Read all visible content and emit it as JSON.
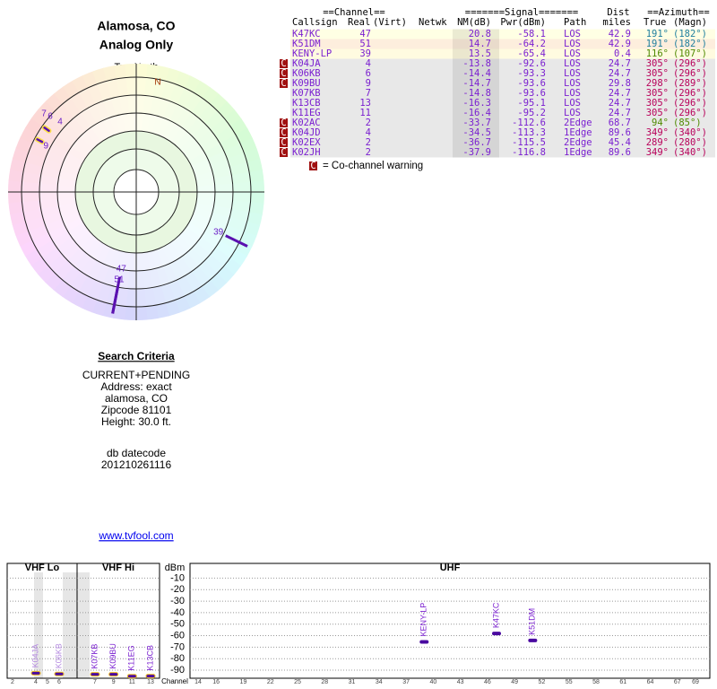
{
  "header": {
    "title": "Alamosa, CO",
    "subtitle": "Analog Only"
  },
  "polar": {
    "north_label": "TrueNorth",
    "n_mark": "N",
    "stations": [
      {
        "channel": "47",
        "azimuth": 191,
        "nm": 20.8
      },
      {
        "channel": "51",
        "azimuth": 191,
        "nm": 14.7
      },
      {
        "channel": "39",
        "azimuth": 116,
        "nm": 13.5
      },
      {
        "channel": "7",
        "azimuth": 305,
        "nm": -14.8
      },
      {
        "channel": "6",
        "azimuth": 305,
        "nm": -14.4
      },
      {
        "channel": "4",
        "azimuth": 305,
        "nm": -13.8
      },
      {
        "channel": "9",
        "azimuth": 298,
        "nm": -14.7
      }
    ]
  },
  "table": {
    "group_headers": [
      "==Channel==",
      "=======Signal=======",
      "Dist",
      "==Azimuth=="
    ],
    "headers": [
      "Callsign",
      "Real",
      "(Virt)",
      "Netwk",
      "NM(dB)",
      "Pwr(dBm)",
      "Path",
      "miles",
      "True",
      "(Magn)"
    ],
    "rows": [
      {
        "callsign": "K47KC",
        "real": "47",
        "nm": "20.8",
        "pwr": "-58.1",
        "path": "LOS",
        "dist": "42.9",
        "true": "191°",
        "magn": "(182°)",
        "warning": false,
        "background": "#ffffe4",
        "az_color": "#1f7f9f"
      },
      {
        "callsign": "K51DM",
        "real": "51",
        "nm": "14.7",
        "pwr": "-64.2",
        "path": "LOS",
        "dist": "42.9",
        "true": "191°",
        "magn": "(182°)",
        "warning": false,
        "background": "#fdeedd",
        "az_color": "#1f7f9f"
      },
      {
        "callsign": "KENY-LP",
        "real": "39",
        "nm": "13.5",
        "pwr": "-65.4",
        "path": "LOS",
        "dist": "0.4",
        "true": "116°",
        "magn": "(107°)",
        "warning": false,
        "background": "#fffbe0",
        "az_color": "#4f8a00"
      },
      {
        "callsign": "K04JA",
        "real": "4",
        "nm": "-13.8",
        "pwr": "-92.6",
        "path": "LOS",
        "dist": "24.7",
        "true": "305°",
        "magn": "(296°)",
        "warning": true,
        "background": "#e8e8e8",
        "az_color": "#b8005a"
      },
      {
        "callsign": "K06KB",
        "real": "6",
        "nm": "-14.4",
        "pwr": "-93.3",
        "path": "LOS",
        "dist": "24.7",
        "true": "305°",
        "magn": "(296°)",
        "warning": true,
        "background": "#e8e8e8",
        "az_color": "#b8005a"
      },
      {
        "callsign": "K09BU",
        "real": "9",
        "nm": "-14.7",
        "pwr": "-93.6",
        "path": "LOS",
        "dist": "29.8",
        "true": "298°",
        "magn": "(289°)",
        "warning": true,
        "background": "#e8e8e8",
        "az_color": "#b8005a"
      },
      {
        "callsign": "K07KB",
        "real": "7",
        "nm": "-14.8",
        "pwr": "-93.6",
        "path": "LOS",
        "dist": "24.7",
        "true": "305°",
        "magn": "(296°)",
        "warning": false,
        "background": "#e8e8e8",
        "az_color": "#b8005a"
      },
      {
        "callsign": "K13CB",
        "real": "13",
        "nm": "-16.3",
        "pwr": "-95.1",
        "path": "LOS",
        "dist": "24.7",
        "true": "305°",
        "magn": "(296°)",
        "warning": false,
        "background": "#e8e8e8",
        "az_color": "#b8005a"
      },
      {
        "callsign": "K11EG",
        "real": "11",
        "nm": "-16.4",
        "pwr": "-95.2",
        "path": "LOS",
        "dist": "24.7",
        "true": "305°",
        "magn": "(296°)",
        "warning": false,
        "background": "#e8e8e8",
        "az_color": "#b8005a"
      },
      {
        "callsign": "K02AC",
        "real": "2",
        "nm": "-33.7",
        "pwr": "-112.6",
        "path": "2Edge",
        "dist": "68.7",
        "true": "94°",
        "magn": "(85°)",
        "warning": true,
        "background": "#e8e8e8",
        "az_color": "#4f8a00"
      },
      {
        "callsign": "K04JD",
        "real": "4",
        "nm": "-34.5",
        "pwr": "-113.3",
        "path": "1Edge",
        "dist": "89.6",
        "true": "349°",
        "magn": "(340°)",
        "warning": true,
        "background": "#e8e8e8",
        "az_color": "#b8005a"
      },
      {
        "callsign": "K02EX",
        "real": "2",
        "nm": "-36.7",
        "pwr": "-115.5",
        "path": "2Edge",
        "dist": "45.4",
        "true": "289°",
        "magn": "(280°)",
        "warning": true,
        "background": "#e8e8e8",
        "az_color": "#b8005a"
      },
      {
        "callsign": "K02JH",
        "real": "2",
        "nm": "-37.9",
        "pwr": "-116.8",
        "path": "1Edge",
        "dist": "89.6",
        "true": "349°",
        "magn": "(340°)",
        "warning": true,
        "background": "#e8e8e8",
        "az_color": "#b8005a"
      }
    ]
  },
  "legend": {
    "icon": "C",
    "text": "= Co-channel warning"
  },
  "search": {
    "title": "Search Criteria",
    "lines": [
      "CURRENT+PENDING",
      "Address: exact",
      "alamosa, CO",
      "Zipcode 81101",
      "Height: 30.0 ft."
    ],
    "db_label": "db datecode",
    "db_value": "201210261116",
    "link": "www.tvfool.com"
  },
  "spectrum": {
    "y_label": "dBm",
    "x_label": "Channel",
    "ylim": [
      -5,
      -97
    ],
    "yticks": [
      -10,
      -20,
      -30,
      -40,
      -50,
      -60,
      -70,
      -80,
      -90
    ],
    "sections": [
      {
        "name": "VHF Lo",
        "xlim": [
          2,
          6
        ],
        "xticks": [
          2,
          4,
          5,
          6
        ]
      },
      {
        "name": "VHF Hi",
        "xlim": [
          7,
          13
        ],
        "xticks": [
          7,
          9,
          11,
          13
        ]
      },
      {
        "name": "UHF",
        "xlim": [
          14,
          69
        ],
        "xticks": [
          14,
          16,
          19,
          22,
          25,
          28,
          31,
          34,
          37,
          40,
          43,
          46,
          49,
          52,
          55,
          58,
          61,
          64,
          67,
          69
        ]
      }
    ],
    "stations": [
      {
        "callsign": "K04JA",
        "channel": 4,
        "dbm": -92.6,
        "color": "#b48ae0"
      },
      {
        "callsign": "K06KB",
        "channel": 6,
        "dbm": -93.3,
        "color": "#b48ae0"
      },
      {
        "callsign": "K07KB",
        "channel": 7,
        "dbm": -93.6,
        "color": "#7a1fd0"
      },
      {
        "callsign": "K09BU",
        "channel": 9,
        "dbm": -93.6,
        "color": "#7a1fd0"
      },
      {
        "callsign": "K11EG",
        "channel": 11,
        "dbm": -95.2,
        "color": "#7a1fd0"
      },
      {
        "callsign": "K13CB",
        "channel": 13,
        "dbm": -95.1,
        "color": "#7a1fd0"
      },
      {
        "callsign": "KENY-LP",
        "channel": 39,
        "dbm": -65.4,
        "color": "#7a1fd0"
      },
      {
        "callsign": "K47KC",
        "channel": 47,
        "dbm": -58.1,
        "color": "#7a1fd0"
      },
      {
        "callsign": "K51DM",
        "channel": 51,
        "dbm": -64.2,
        "color": "#7a1fd0"
      }
    ]
  }
}
